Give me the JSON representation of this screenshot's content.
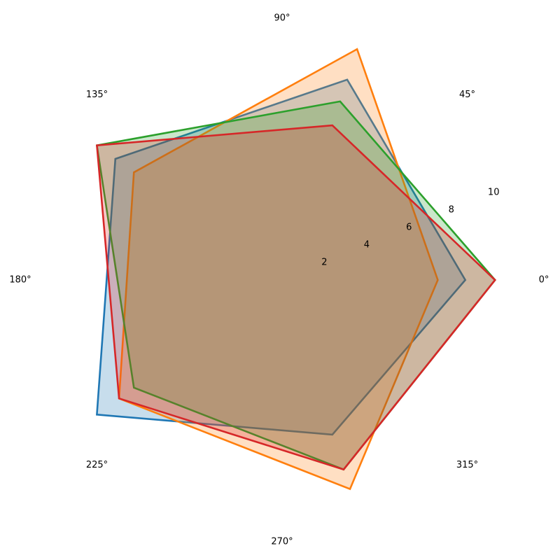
{
  "chart_data": {
    "type": "radar",
    "title": "",
    "axis_angles_deg": [
      0,
      72,
      144,
      216,
      288
    ],
    "angle_tick_labels": [
      "0°",
      "45°",
      "90°",
      "135°",
      "180°",
      "225°",
      "270°",
      "315°"
    ],
    "angle_tick_degrees": [
      0,
      45,
      90,
      135,
      180,
      225,
      270,
      315
    ],
    "radial_ticks": [
      2,
      4,
      6,
      8,
      10
    ],
    "radial_tick_labels": [
      "2",
      "4",
      "6",
      "8",
      "10"
    ],
    "rlim": [
      0,
      10.7
    ],
    "grid": false,
    "legend": "none",
    "series": [
      {
        "color": "#1f77b4",
        "fill_opacity": 0.25,
        "values": [
          8.0,
          9.2,
          9.0,
          10.0,
          7.1
        ]
      },
      {
        "color": "#ff7f0e",
        "fill_opacity": 0.25,
        "values": [
          6.8,
          10.6,
          8.0,
          8.8,
          9.6
        ]
      },
      {
        "color": "#2ca02c",
        "fill_opacity": 0.25,
        "values": [
          9.3,
          8.2,
          10.0,
          8.0,
          8.7
        ]
      },
      {
        "color": "#d62728",
        "fill_opacity": 0.25,
        "values": [
          9.3,
          7.1,
          10.0,
          8.8,
          8.7
        ]
      }
    ]
  }
}
